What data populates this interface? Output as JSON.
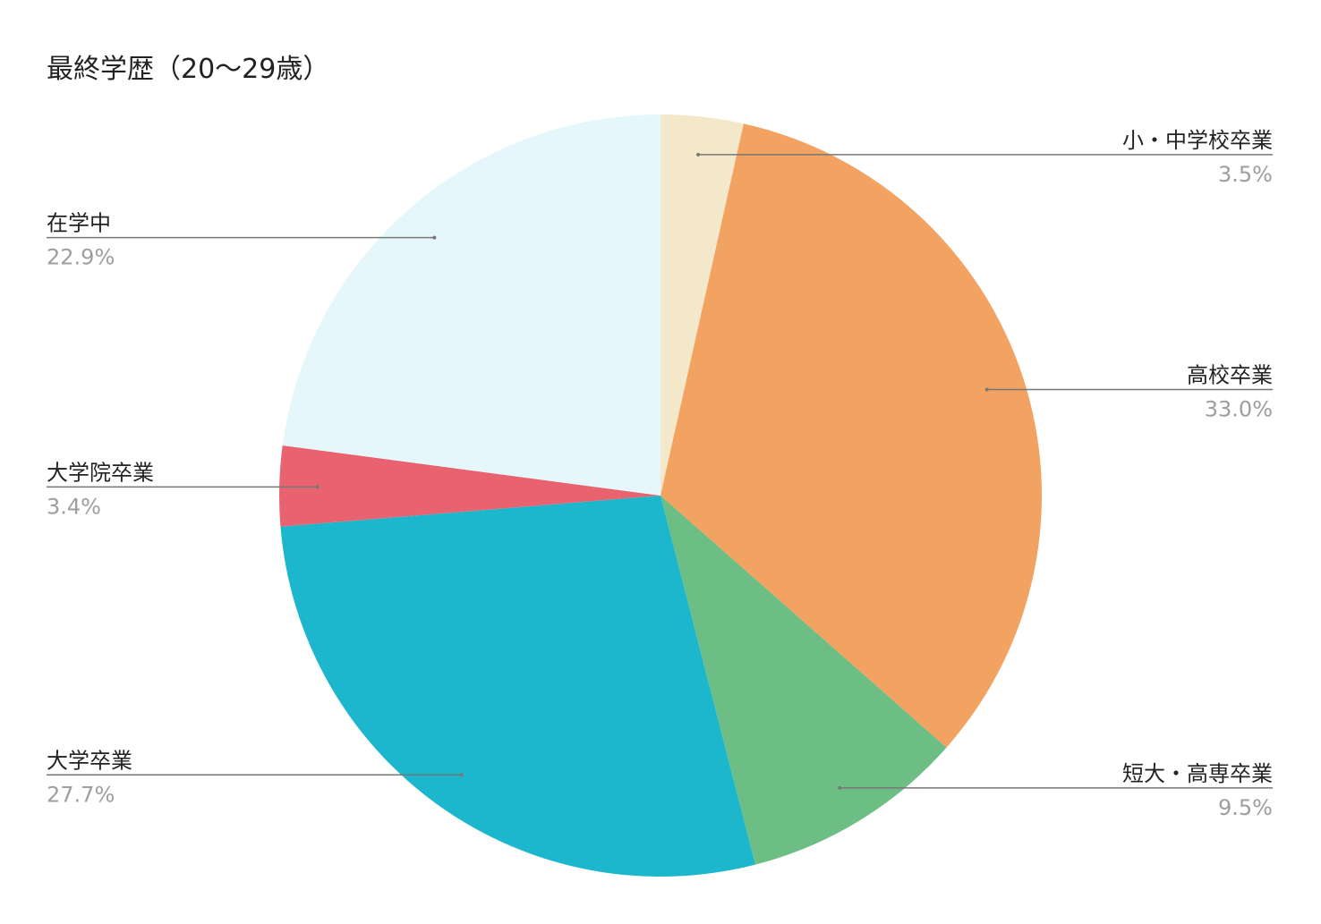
{
  "chart_data": {
    "type": "pie",
    "title": "最終学歴（20〜29歳）",
    "start_angle_deg": 0,
    "direction": "clockwise",
    "slices": [
      {
        "label": "小・中学校卒業",
        "value": 3.5,
        "display": "3.5%",
        "color": "#f3e8c9",
        "label_side": "right"
      },
      {
        "label": "高校卒業",
        "value": 33.0,
        "display": "33.0%",
        "color": "#f2a261",
        "label_side": "right"
      },
      {
        "label": "短大・高専卒業",
        "value": 9.5,
        "display": "9.5%",
        "color": "#6cbe84",
        "label_side": "right"
      },
      {
        "label": "大学卒業",
        "value": 27.7,
        "display": "27.7%",
        "color": "#1cb7cc",
        "label_side": "left"
      },
      {
        "label": "大学院卒業",
        "value": 3.4,
        "display": "3.4%",
        "color": "#e86270",
        "label_side": "left"
      },
      {
        "label": "在学中",
        "value": 22.9,
        "display": "22.9%",
        "color": "#e6f7fc",
        "label_side": "left"
      }
    ],
    "leader_line_color": "#777777"
  }
}
